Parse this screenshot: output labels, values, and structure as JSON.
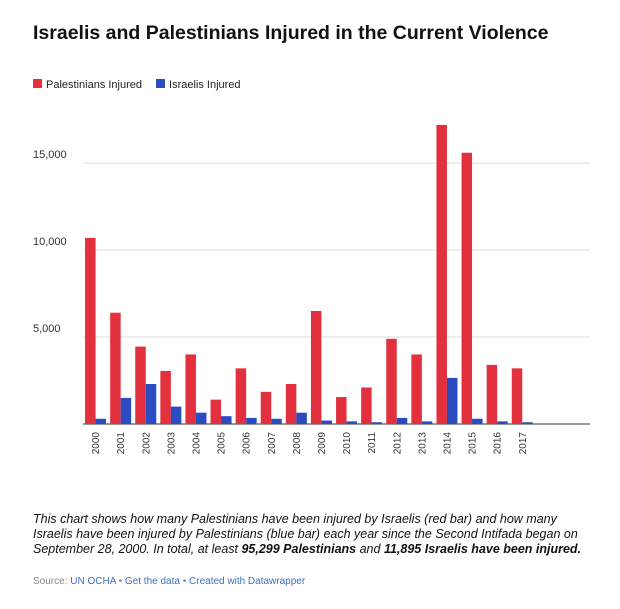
{
  "chart_data": {
    "type": "bar",
    "title": "Israelis and Palestinians Injured in the Current Violence",
    "categories": [
      "2000",
      "2001",
      "2002",
      "2003",
      "2004",
      "2005",
      "2006",
      "2007",
      "2008",
      "2009",
      "2010",
      "2011",
      "2012",
      "2013",
      "2014",
      "2015",
      "2016",
      "2017"
    ],
    "series": [
      {
        "name": "Palestinians Injured",
        "color": "#e3303e",
        "values": [
          10700,
          6400,
          4450,
          3050,
          4000,
          1400,
          3200,
          1850,
          2300,
          6500,
          1550,
          2100,
          4900,
          4000,
          17200,
          15600,
          3400,
          3200
        ]
      },
      {
        "name": "Israelis Injured",
        "color": "#2b4cc0",
        "values": [
          300,
          1500,
          2300,
          1000,
          650,
          450,
          350,
          300,
          650,
          200,
          150,
          100,
          350,
          150,
          2650,
          300,
          150,
          100
        ]
      }
    ],
    "ylim": [
      0,
      18000
    ],
    "yticks": [
      {
        "value": 5000,
        "label": "5,000"
      },
      {
        "value": 10000,
        "label": "10,000"
      },
      {
        "value": 15000,
        "label": "15,000"
      }
    ],
    "grid": true,
    "description": [
      "This chart shows how many Palestinians have been injured by Israelis (red bar) and how many Israelis have been injured by Palestinians (blue bar) each year since the Second Intifada began on September 28, 2000. In total, at least ",
      "95,299 Palestinians",
      " and ",
      "11,895 Israelis have been injured."
    ],
    "source_label": "Source:",
    "source": "UN OCHA",
    "separator": "•",
    "links": [
      "Get the data",
      "Created with Datawrapper"
    ]
  }
}
